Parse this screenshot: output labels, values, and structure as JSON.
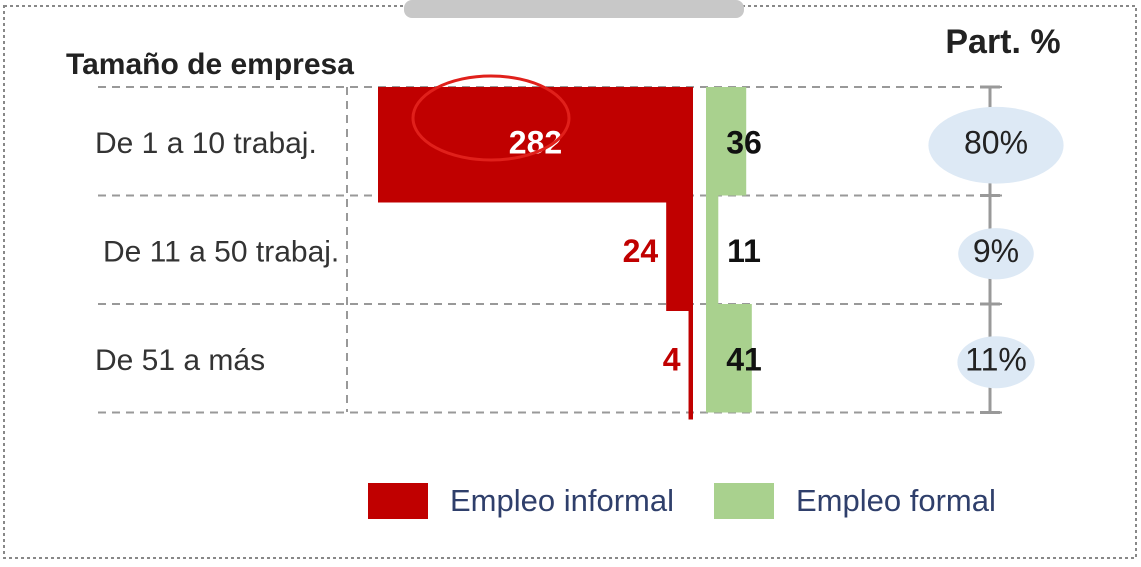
{
  "chart_data": {
    "type": "butterfly-bar",
    "category_header": "Tamaño de empresa",
    "share_header": "Part. %",
    "categories": [
      "De 1 a 10 trabaj.",
      "De 11 a 50 trabaj.",
      "De 51 a más"
    ],
    "series": [
      {
        "name": "Empleo informal",
        "color": "#c00000",
        "values": [
          282,
          24,
          4
        ]
      },
      {
        "name": "Empleo formal",
        "color": "#a9d18e",
        "values": [
          36,
          11,
          41
        ]
      }
    ],
    "share": {
      "values": [
        80,
        9,
        11
      ],
      "value_labels": [
        "80%",
        "9%",
        "11%"
      ],
      "color": "#dde9f5"
    }
  }
}
